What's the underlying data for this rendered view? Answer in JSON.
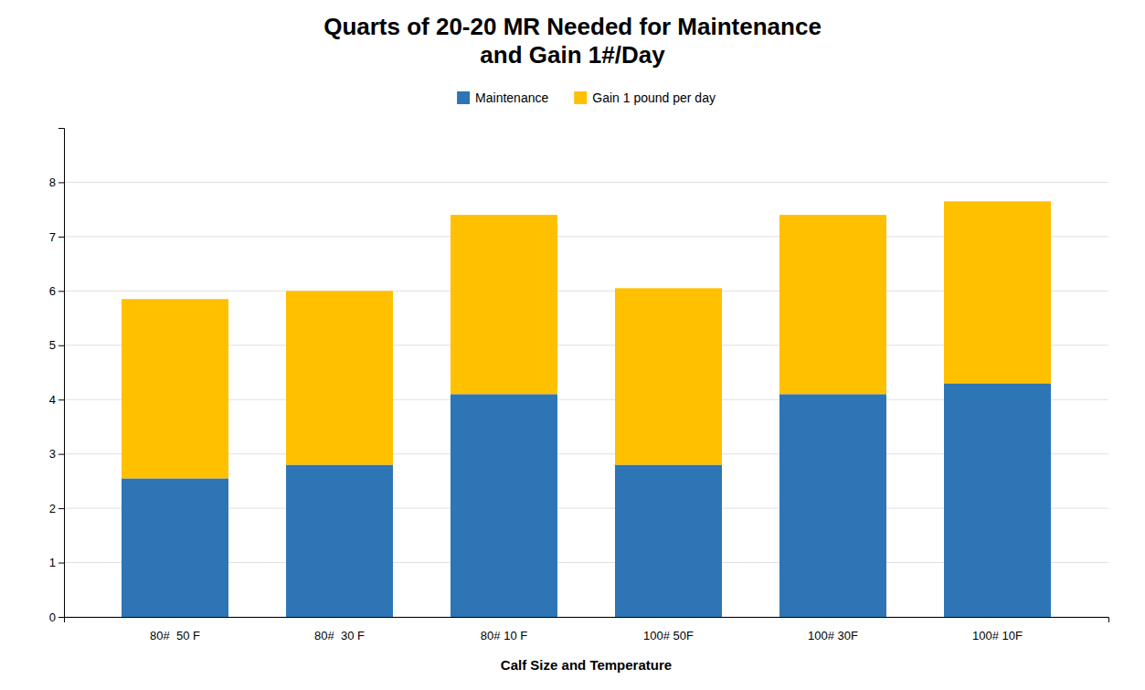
{
  "chart_data": {
    "type": "bar",
    "stacked": true,
    "title": "Quarts of 20-20 MR Needed for Maintenance\nand Gain 1#/Day",
    "x_label": "Calf Size and Temperature",
    "categories": [
      "80#  50 F",
      "80#  30 F",
      "80# 10 F",
      "100# 50F",
      "100# 30F",
      "100# 10F"
    ],
    "series": [
      {
        "name": "Maintenance",
        "color": "#2E75B6",
        "values": [
          2.55,
          2.8,
          4.1,
          2.8,
          4.1,
          4.3
        ]
      },
      {
        "name": "Gain 1 pound per day",
        "color": "#FFC000",
        "values": [
          3.3,
          3.2,
          3.3,
          3.25,
          3.3,
          3.35
        ]
      }
    ],
    "ylim": [
      0,
      9
    ],
    "yticks": [
      0,
      1,
      2,
      3,
      4,
      5,
      6,
      7,
      8
    ],
    "grid": true,
    "legend": "top"
  }
}
